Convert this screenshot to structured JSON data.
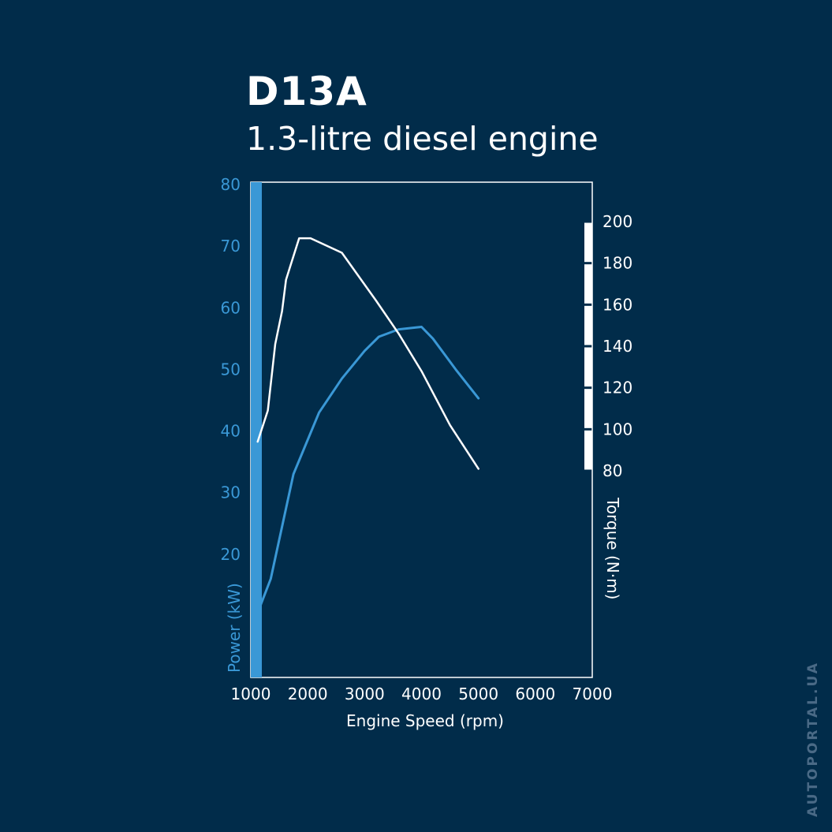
{
  "header": {
    "title": "D13A",
    "subtitle": "1.3-litre diesel engine"
  },
  "watermark": "AUTOPORTAL.UA",
  "colors": {
    "background": "#012c4a",
    "power": "#3a98d6",
    "torque": "#ffffff"
  },
  "chart_data": {
    "type": "line",
    "title": "D13A",
    "subtitle": "1.3-litre diesel engine",
    "xlabel": "Engine Speed (rpm)",
    "ylabel_left": "Power (kW)",
    "ylabel_right": "Torque (N·m)",
    "xlim": [
      1000,
      7000
    ],
    "xticks": [
      1000,
      2000,
      3000,
      4000,
      5000,
      6000,
      7000
    ],
    "ylim_left": [
      0,
      80
    ],
    "yticks_left": [
      20,
      30,
      40,
      50,
      60,
      70,
      80
    ],
    "ylim_right": [
      80,
      200
    ],
    "yticks_right": [
      80,
      100,
      120,
      140,
      160,
      180,
      200
    ],
    "grid": false,
    "series": [
      {
        "name": "Power (kW)",
        "axis": "left",
        "color": "#3a98d6",
        "x": [
          1100,
          1350,
          1750,
          2200,
          2600,
          3000,
          3250,
          3600,
          3900,
          4000,
          4200,
          4600,
          5000
        ],
        "y": [
          10,
          16,
          33,
          43,
          48.5,
          53,
          55.3,
          56.5,
          56.8,
          56.9,
          55,
          50,
          45.3
        ]
      },
      {
        "name": "Torque (N·m)",
        "axis": "right",
        "color": "#ffffff",
        "x": [
          1120,
          1300,
          1430,
          1550,
          1620,
          1700,
          1850,
          2050,
          2600,
          3200,
          3600,
          4000,
          4500,
          5000
        ],
        "y": [
          94,
          109,
          141,
          157,
          172,
          179,
          192,
          192,
          185,
          162,
          146,
          128,
          102,
          81
        ]
      }
    ]
  }
}
